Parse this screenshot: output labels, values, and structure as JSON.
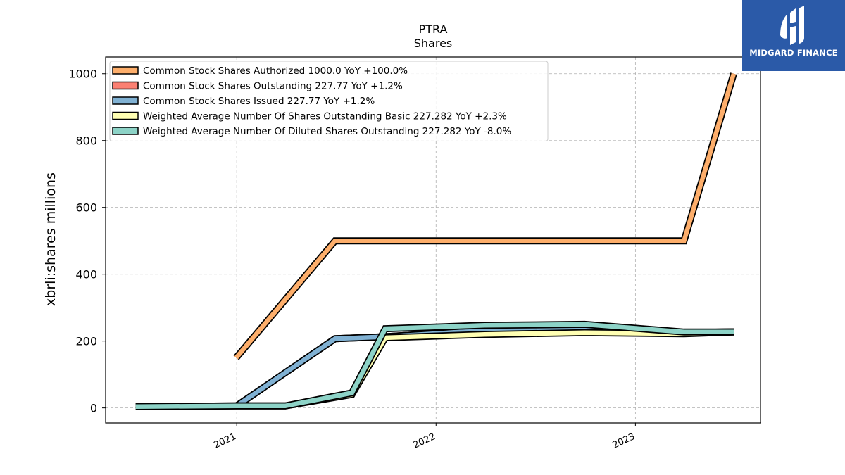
{
  "chart_data": {
    "type": "line",
    "title": "PTRA",
    "subtitle": "Shares",
    "xlabel": "",
    "ylabel": "xbrli:shares millions",
    "xlim": [
      "2020-05-06",
      "2023-08-18"
    ],
    "ylim": [
      -45,
      1050
    ],
    "y_ticks": [
      0,
      200,
      400,
      600,
      800,
      1000
    ],
    "x_ticks": [
      {
        "date": "2021-01-01",
        "label": "2021"
      },
      {
        "date": "2022-01-01",
        "label": "2022"
      },
      {
        "date": "2023-01-01",
        "label": "2023"
      }
    ],
    "grid": true,
    "legend_position": "top-left",
    "series": [
      {
        "name": "Common Stock Shares Authorized",
        "legend_label": "Common Stock Shares Authorized  1000.0 YoY +100.0%",
        "color": "#fdae6b",
        "x": [
          "2020-12-31",
          "2021-06-30",
          "2023-03-31",
          "2023-06-30"
        ],
        "y": [
          150,
          500,
          500,
          1000
        ]
      },
      {
        "name": "Common Stock Shares Outstanding",
        "legend_label": "Common Stock Shares Outstanding  227.77 YoY +1.2%",
        "color": "#fb8072",
        "x": [
          "2020-12-31",
          "2021-06-30",
          "2021-09-30",
          "2022-03-31",
          "2022-09-30",
          "2023-03-31",
          "2023-06-30"
        ],
        "y": [
          5,
          207,
          213,
          232,
          237,
          225,
          227.77
        ]
      },
      {
        "name": "Common Stock Shares Issued",
        "legend_label": "Common Stock Shares Issued  227.77 YoY +1.2%",
        "color": "#80b1d3",
        "x": [
          "2020-12-31",
          "2021-06-30",
          "2021-09-30",
          "2022-03-31",
          "2022-09-30",
          "2023-03-31",
          "2023-06-30"
        ],
        "y": [
          5,
          207,
          213,
          232,
          237,
          225,
          227.77
        ]
      },
      {
        "name": "Weighted Average Number Of Shares Outstanding Basic",
        "legend_label": "Weighted Average Number Of Shares Outstanding Basic  227.282 YoY +2.3%",
        "color": "#ffffb3",
        "x": [
          "2020-06-30",
          "2020-12-31",
          "2021-03-31",
          "2021-07-31",
          "2021-09-30",
          "2022-03-31",
          "2022-09-30",
          "2023-03-31",
          "2023-06-30"
        ],
        "y": [
          4,
          6,
          6,
          40,
          210,
          220,
          225,
          222,
          227.282
        ]
      },
      {
        "name": "Weighted Average Number Of Diluted Shares Outstanding",
        "legend_label": "Weighted Average Number Of Diluted Shares Outstanding  227.282 YoY -8.0%",
        "color": "#8dd3c7",
        "x": [
          "2020-06-30",
          "2020-12-31",
          "2021-03-31",
          "2021-07-31",
          "2021-09-30",
          "2022-03-31",
          "2022-09-30",
          "2023-03-31",
          "2023-06-30"
        ],
        "y": [
          4,
          6,
          6,
          45,
          237,
          247,
          250,
          227,
          227.282
        ]
      }
    ]
  },
  "brand": {
    "name": "MIDGARD FINANCE",
    "color": "#2b5aa8"
  }
}
